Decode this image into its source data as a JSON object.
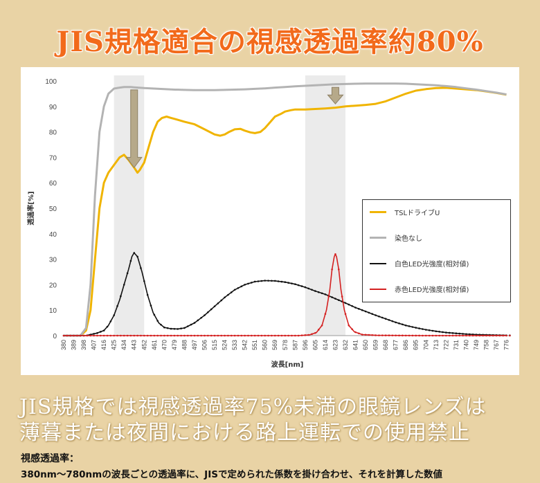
{
  "title": "JIS規格適合の視感透過率約80%",
  "statement_line1": "JIS規格では視感透過率75%未満の眼鏡レンズは",
  "statement_line2": "薄暮または夜間における路上運転での使用禁止",
  "definition_label": "視感透過率：",
  "definition_text": "380nm～780nmの波長ごとの透過率に、JISで定められた係数を掛け合わせ、それを計算した数値",
  "colors": {
    "yellow": "#f0b400",
    "gray": "#b3b3b3",
    "black": "#111111",
    "red": "#d42020",
    "title": "#f26a1b",
    "background": "#e9d3a5"
  },
  "icons": [
    "arrow-down-icon"
  ],
  "chart_data": {
    "type": "line",
    "xlabel": "波長[nm]",
    "ylabel": "透過率[%]",
    "ylim": [
      0,
      100
    ],
    "yticks": [
      0,
      10,
      20,
      30,
      40,
      50,
      60,
      70,
      80,
      90,
      100
    ],
    "x_tick_labels": [
      "380",
      "389",
      "398",
      "407",
      "416",
      "425",
      "434",
      "443",
      "452",
      "461",
      "470",
      "479",
      "488",
      "497",
      "506",
      "515",
      "524",
      "533",
      "542",
      "551",
      "560",
      "569",
      "578",
      "587",
      "596",
      "605",
      "614",
      "623",
      "632",
      "641",
      "650",
      "659",
      "668",
      "677",
      "686",
      "695",
      "704",
      "713",
      "722",
      "731",
      "740",
      "749",
      "758",
      "767",
      "776"
    ],
    "xlim": [
      380,
      780
    ],
    "grid": false,
    "legend_position": "right",
    "shaded_bands": [
      [
        425,
        452
      ],
      [
        596,
        632
      ]
    ],
    "arrows_at": [
      443,
      623
    ],
    "series": [
      {
        "name": "TSLドライブU",
        "color": "#f0b400",
        "x": [
          380,
          395,
          400,
          404,
          408,
          412,
          416,
          420,
          425,
          430,
          434,
          438,
          443,
          446,
          448,
          452,
          456,
          460,
          464,
          468,
          472,
          476,
          480,
          488,
          497,
          506,
          515,
          520,
          524,
          528,
          533,
          538,
          542,
          547,
          551,
          556,
          560,
          565,
          569,
          574,
          578,
          583,
          587,
          596,
          605,
          614,
          623,
          632,
          641,
          650,
          659,
          668,
          677,
          686,
          695,
          704,
          713,
          722,
          731,
          740,
          749,
          758,
          767,
          776
        ],
        "y": [
          0,
          0,
          2,
          10,
          30,
          50,
          60,
          64,
          67,
          70,
          71,
          69,
          66,
          64,
          65,
          68,
          74,
          80,
          84,
          85.5,
          86,
          85.5,
          85,
          84,
          83,
          81,
          79,
          78.5,
          79,
          80,
          81,
          81.2,
          80.5,
          79.8,
          79.5,
          80,
          81.5,
          84,
          86,
          87,
          88,
          88.5,
          88.8,
          88.8,
          89,
          89.2,
          89.5,
          90,
          90.3,
          90.6,
          91,
          92,
          93.5,
          95,
          96.2,
          96.8,
          97.2,
          97.3,
          97,
          96.7,
          96.4,
          95.9,
          95.3,
          94.6
        ]
      },
      {
        "name": "染色なし",
        "color": "#b3b3b3",
        "x": [
          380,
          395,
          400,
          404,
          408,
          412,
          416,
          420,
          425,
          430,
          434,
          440,
          443,
          452,
          461,
          470,
          479,
          488,
          497,
          506,
          515,
          524,
          533,
          542,
          551,
          560,
          569,
          578,
          587,
          596,
          605,
          614,
          623,
          632,
          641,
          650,
          659,
          668,
          677,
          686,
          695,
          704,
          713,
          722,
          731,
          740,
          749,
          758,
          767,
          776
        ],
        "y": [
          0,
          0,
          3,
          20,
          55,
          80,
          90,
          95,
          97,
          97.4,
          97.6,
          97.6,
          97.5,
          97.2,
          97,
          96.8,
          96.6,
          96.5,
          96.4,
          96.4,
          96.4,
          96.5,
          96.6,
          96.7,
          96.9,
          97.1,
          97.4,
          97.6,
          97.9,
          98.1,
          98.3,
          98.5,
          98.7,
          98.8,
          98.9,
          99,
          99,
          99,
          99,
          98.9,
          98.7,
          98.5,
          98.3,
          98,
          97.6,
          97.1,
          96.6,
          96,
          95.4,
          94.7
        ]
      },
      {
        "name": "白色LED光強度(相対値)",
        "color": "#111111",
        "x": [
          380,
          390,
          400,
          410,
          416,
          420,
          425,
          430,
          434,
          438,
          441,
          443,
          446,
          450,
          455,
          460,
          465,
          470,
          476,
          482,
          488,
          497,
          506,
          515,
          524,
          533,
          542,
          551,
          560,
          569,
          578,
          587,
          596,
          605,
          614,
          623,
          632,
          641,
          650,
          659,
          668,
          677,
          686,
          695,
          704,
          713,
          722,
          731,
          740,
          749,
          758,
          767,
          776
        ],
        "y": [
          0,
          0,
          0,
          1,
          2,
          4,
          8,
          14,
          20,
          26,
          31,
          32.5,
          31,
          25,
          16,
          9,
          5,
          3.2,
          2.7,
          2.6,
          3,
          5,
          8,
          11.5,
          15,
          18,
          20,
          21.2,
          21.6,
          21.5,
          21,
          20.2,
          19,
          17.5,
          16.2,
          14.5,
          12.8,
          11,
          9.5,
          8,
          6.6,
          5.2,
          4,
          3.1,
          2.3,
          1.7,
          1.2,
          0.9,
          0.6,
          0.4,
          0.3,
          0.2,
          0.1
        ]
      },
      {
        "name": "赤色LED光強度(相対値)",
        "color": "#d42020",
        "x": [
          380,
          500,
          590,
          600,
          606,
          611,
          615,
          618,
          620,
          622,
          623,
          624,
          626,
          628,
          631,
          635,
          640,
          647,
          660,
          700,
          776
        ],
        "y": [
          0,
          0,
          0,
          0.3,
          1.2,
          4,
          10,
          18,
          26,
          31,
          32,
          31,
          26,
          18,
          10,
          4,
          1.5,
          0.4,
          0.1,
          0,
          0
        ]
      }
    ]
  }
}
